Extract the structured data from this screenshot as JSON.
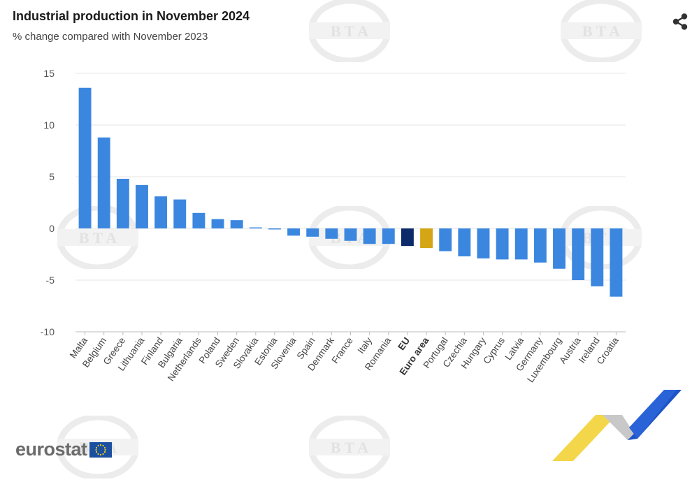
{
  "title": "Industrial production in November 2024",
  "subtitle": "% change compared with November 2023",
  "logo": {
    "text": "eurostat",
    "name": "eurostat-logo"
  },
  "watermark": {
    "text": "BTA"
  },
  "colors": {
    "bar": "#3b87e0",
    "eu": "#0d2b6b",
    "euro_area": "#d4a514",
    "grid": "#e6e6e6",
    "axis": "#bdbdbd"
  },
  "icons": {
    "share": "share-icon"
  },
  "chart_data": {
    "type": "bar",
    "title": "Industrial production in November 2024",
    "subtitle": "% change compared with November 2023",
    "ylim": [
      -10,
      15
    ],
    "yticks": [
      15,
      10,
      5,
      0,
      -5,
      -10
    ],
    "grid": true,
    "categories": [
      "Malta",
      "Belgium",
      "Greece",
      "Lithuania",
      "Finland",
      "Bulgaria",
      "Netherlands",
      "Poland",
      "Sweden",
      "Slovakia",
      "Estonia",
      "Slovenia",
      "Spain",
      "Denmark",
      "France",
      "Italy",
      "Romania",
      "EU",
      "Euro area",
      "Portugal",
      "Czechia",
      "Hungary",
      "Cyprus",
      "Latvia",
      "Germany",
      "Luxembourg",
      "Austria",
      "Ireland",
      "Croatia"
    ],
    "values": [
      13.6,
      8.8,
      4.8,
      4.2,
      3.1,
      2.8,
      1.5,
      0.9,
      0.8,
      0.1,
      -0.1,
      -0.7,
      -0.8,
      -1.0,
      -1.2,
      -1.5,
      -1.5,
      -1.7,
      -1.9,
      -2.2,
      -2.7,
      -2.9,
      -3.0,
      -3.0,
      -3.3,
      -3.9,
      -5.0,
      -5.6,
      -6.6
    ],
    "highlight": {
      "EU": "#0d2b6b",
      "Euro area": "#d4a514"
    },
    "bold_categories": [
      "EU",
      "Euro area"
    ]
  }
}
